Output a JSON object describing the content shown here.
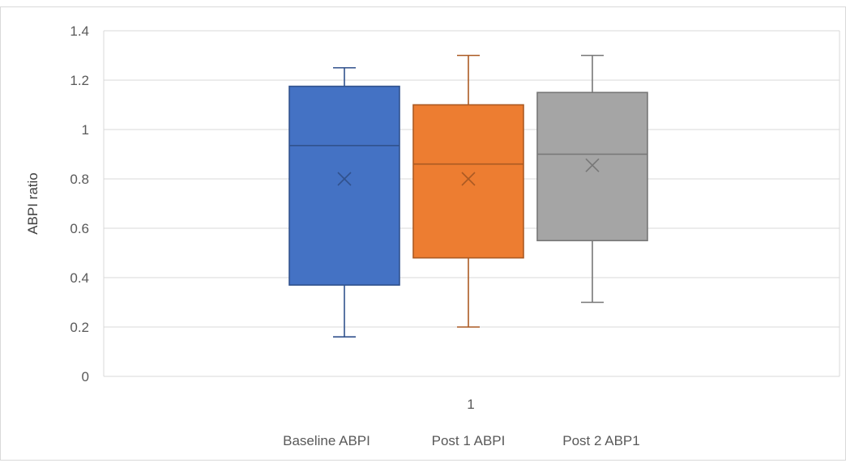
{
  "chart_data": {
    "type": "box",
    "title": "",
    "xlabel": "",
    "ylabel": "ABPI ratio",
    "ylim": [
      0,
      1.4
    ],
    "y_ticks": [
      0,
      0.2,
      0.4,
      0.6,
      0.8,
      1,
      1.2,
      1.4
    ],
    "y_tick_labels": [
      "0",
      "0.2",
      "0.4",
      "0.6",
      "0.8",
      "1",
      "1.2",
      "1.4"
    ],
    "categories": [
      "1"
    ],
    "grid": true,
    "legend_position": "bottom",
    "series": [
      {
        "name": "Baseline ABPI",
        "color": "#4472c4",
        "min": 0.16,
        "q1": 0.37,
        "median": 0.935,
        "q3": 1.175,
        "max": 1.25,
        "mean": 0.8
      },
      {
        "name": "Post 1 ABPI",
        "color": "#ed7d31",
        "min": 0.2,
        "q1": 0.48,
        "median": 0.86,
        "q3": 1.1,
        "max": 1.3,
        "mean": 0.8
      },
      {
        "name": "Post 2 ABP1",
        "color": "#a5a5a5",
        "min": 0.3,
        "q1": 0.55,
        "median": 0.9,
        "q3": 1.15,
        "max": 1.3,
        "mean": 0.855
      }
    ]
  }
}
